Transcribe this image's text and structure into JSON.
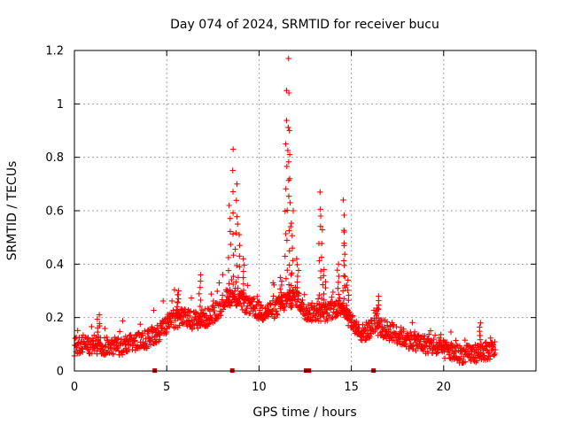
{
  "chart_data": {
    "type": "scatter",
    "title": "Day 074 of 2024, SRMTID for receiver bucu",
    "xlabel": "GPS time / hours",
    "ylabel": "SRMTID / TECUs",
    "xlim": [
      0,
      25
    ],
    "ylim": [
      0,
      1.2
    ],
    "x_ticks": [
      0,
      5,
      10,
      15,
      20
    ],
    "x_tick_labels": [
      "0",
      "5",
      "10",
      "15",
      "20"
    ],
    "y_ticks": [
      0,
      0.2,
      0.4,
      0.6,
      0.8,
      1.0,
      1.2
    ],
    "y_tick_labels": [
      "0",
      "0.2",
      "0.4",
      "0.6",
      "0.8",
      "1",
      "1.2"
    ],
    "grid": true,
    "marker": "+",
    "series_color": "#ff0000",
    "gap_marker_color": "#cc0000",
    "data_gaps_x": [
      4.35,
      8.55,
      12.55,
      12.7,
      16.2
    ],
    "baseline_profile": [
      [
        0.0,
        0.09
      ],
      [
        1.0,
        0.1
      ],
      [
        2.0,
        0.09
      ],
      [
        3.0,
        0.1
      ],
      [
        4.0,
        0.12
      ],
      [
        4.6,
        0.14
      ],
      [
        5.2,
        0.19
      ],
      [
        5.8,
        0.2
      ],
      [
        6.5,
        0.19
      ],
      [
        7.2,
        0.2
      ],
      [
        7.8,
        0.23
      ],
      [
        8.3,
        0.28
      ],
      [
        8.9,
        0.27
      ],
      [
        9.5,
        0.24
      ],
      [
        10.2,
        0.22
      ],
      [
        10.8,
        0.23
      ],
      [
        11.4,
        0.26
      ],
      [
        12.0,
        0.28
      ],
      [
        12.5,
        0.22
      ],
      [
        13.2,
        0.22
      ],
      [
        13.8,
        0.22
      ],
      [
        14.5,
        0.25
      ],
      [
        15.0,
        0.18
      ],
      [
        15.6,
        0.14
      ],
      [
        16.3,
        0.17
      ],
      [
        17.0,
        0.15
      ],
      [
        18.0,
        0.12
      ],
      [
        19.0,
        0.1
      ],
      [
        20.0,
        0.08
      ],
      [
        21.0,
        0.06
      ],
      [
        22.0,
        0.07
      ],
      [
        22.8,
        0.08
      ]
    ],
    "noise_amplitude": 0.035,
    "sample_count": 1300,
    "peaks": [
      {
        "x": 8.4,
        "y": 0.62
      },
      {
        "x": 8.6,
        "y": 0.83
      },
      {
        "x": 8.75,
        "y": 0.7
      },
      {
        "x": 8.9,
        "y": 0.55
      },
      {
        "x": 9.2,
        "y": 0.42
      },
      {
        "x": 11.2,
        "y": 0.35
      },
      {
        "x": 11.45,
        "y": 0.85
      },
      {
        "x": 11.55,
        "y": 1.05
      },
      {
        "x": 11.62,
        "y": 1.17
      },
      {
        "x": 11.7,
        "y": 0.9
      },
      {
        "x": 11.8,
        "y": 0.6
      },
      {
        "x": 12.1,
        "y": 0.42
      },
      {
        "x": 13.3,
        "y": 0.67
      },
      {
        "x": 13.4,
        "y": 0.58
      },
      {
        "x": 13.55,
        "y": 0.38
      },
      {
        "x": 14.3,
        "y": 0.4
      },
      {
        "x": 14.55,
        "y": 0.64
      },
      {
        "x": 14.65,
        "y": 0.52
      },
      {
        "x": 14.8,
        "y": 0.34
      },
      {
        "x": 16.45,
        "y": 0.28
      },
      {
        "x": 6.8,
        "y": 0.36
      },
      {
        "x": 5.6,
        "y": 0.3
      },
      {
        "x": 1.3,
        "y": 0.21
      },
      {
        "x": 22.0,
        "y": 0.18
      }
    ]
  }
}
